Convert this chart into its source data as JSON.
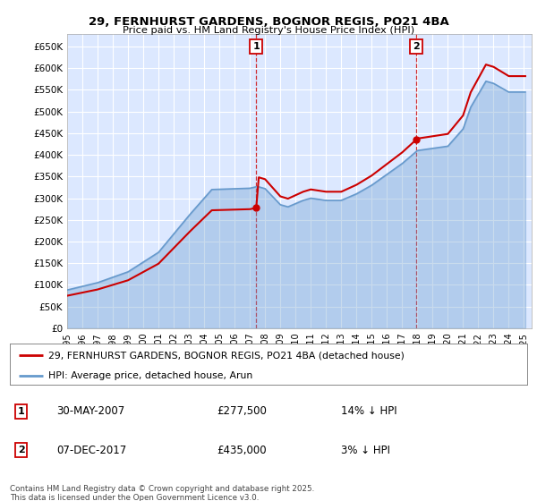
{
  "title1": "29, FERNHURST GARDENS, BOGNOR REGIS, PO21 4BA",
  "title2": "Price paid vs. HM Land Registry's House Price Index (HPI)",
  "ylabel_ticks": [
    "£0",
    "£50K",
    "£100K",
    "£150K",
    "£200K",
    "£250K",
    "£300K",
    "£350K",
    "£400K",
    "£450K",
    "£500K",
    "£550K",
    "£600K",
    "£650K"
  ],
  "ytick_values": [
    0,
    50000,
    100000,
    150000,
    200000,
    250000,
    300000,
    350000,
    400000,
    450000,
    500000,
    550000,
    600000,
    650000
  ],
  "ylim": [
    0,
    680000
  ],
  "xlim_start": 1995.0,
  "xlim_end": 2025.5,
  "legend_line1": "29, FERNHURST GARDENS, BOGNOR REGIS, PO21 4BA (detached house)",
  "legend_line2": "HPI: Average price, detached house, Arun",
  "annotation1_date": "30-MAY-2007",
  "annotation1_price": "£277,500",
  "annotation1_hpi": "14% ↓ HPI",
  "annotation2_date": "07-DEC-2017",
  "annotation2_price": "£435,000",
  "annotation2_hpi": "3% ↓ HPI",
  "red_color": "#cc0000",
  "blue_color": "#6699cc",
  "plot_bg": "#dce8ff",
  "footer_text": "Contains HM Land Registry data © Crown copyright and database right 2025.\nThis data is licensed under the Open Government Licence v3.0.",
  "sale1_x": 2007.42,
  "sale1_y": 277500,
  "sale2_x": 2017.92,
  "sale2_y": 435000
}
